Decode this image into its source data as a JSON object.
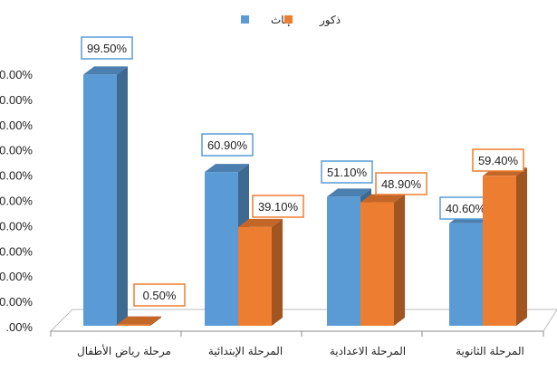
{
  "chart_data": {
    "type": "bar",
    "categories": [
      "مرحلة رياض الأطفال",
      "المرحلة الإبتدائية",
      "المرحلة الاعدادية",
      "المرحلة الثانوية"
    ],
    "series": [
      {
        "name": "إناث",
        "values": [
          99.5,
          60.9,
          51.1,
          40.6
        ],
        "labels": [
          "99.50%",
          "60.90%",
          "51.10%",
          "40.60%"
        ],
        "color": "#5B9BD5"
      },
      {
        "name": "ذكور",
        "values": [
          0.5,
          39.1,
          48.9,
          59.4
        ],
        "labels": [
          "0.50%",
          "39.10%",
          "48.90%",
          "59.40%"
        ],
        "color": "#ED7D31"
      }
    ],
    "y_ticks": [
      ".00%",
      "0.00%",
      "0.00%",
      "0.00%",
      "0.00%",
      "0.00%",
      "0.00%",
      "0.00%",
      "0.00%",
      "0.00%",
      "0.00%"
    ],
    "ylim": [
      0,
      100
    ],
    "grid": false,
    "legend_position": "top-center",
    "style": "3d-clustered-column"
  }
}
